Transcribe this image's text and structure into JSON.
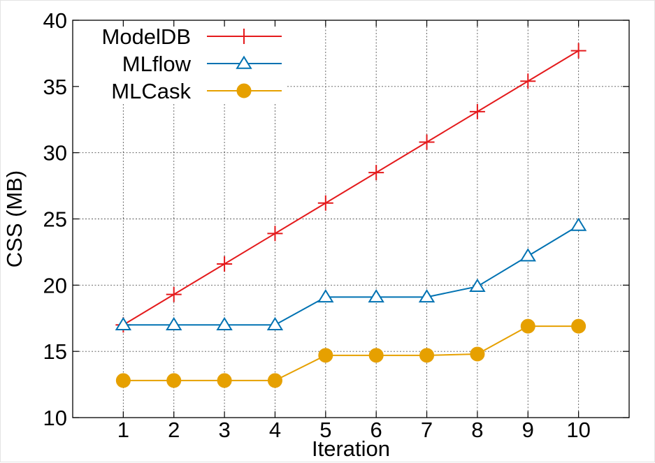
{
  "chart_data": {
    "type": "line",
    "xlabel": "Iteration",
    "ylabel": "CSS (MB)",
    "x": [
      1,
      2,
      3,
      4,
      5,
      6,
      7,
      8,
      9,
      10
    ],
    "xlim": [
      0,
      11
    ],
    "ylim": [
      10,
      40
    ],
    "yticks": [
      10,
      15,
      20,
      25,
      30,
      35,
      40
    ],
    "grid": true,
    "legend_position": "top-left",
    "series": [
      {
        "name": "ModelDB",
        "marker": "plus",
        "color": "#e41a1c",
        "values": [
          17.0,
          19.3,
          21.6,
          23.9,
          26.2,
          28.5,
          30.8,
          33.1,
          35.4,
          37.7
        ]
      },
      {
        "name": "MLflow",
        "marker": "triangle",
        "color": "#0072b2",
        "values": [
          17.0,
          17.0,
          17.0,
          17.0,
          19.1,
          19.1,
          19.1,
          19.9,
          22.2,
          24.5
        ]
      },
      {
        "name": "MLCask",
        "marker": "circle",
        "color": "#e6a000",
        "values": [
          12.8,
          12.8,
          12.8,
          12.8,
          14.7,
          14.7,
          14.7,
          14.8,
          16.9,
          16.9
        ]
      }
    ]
  }
}
